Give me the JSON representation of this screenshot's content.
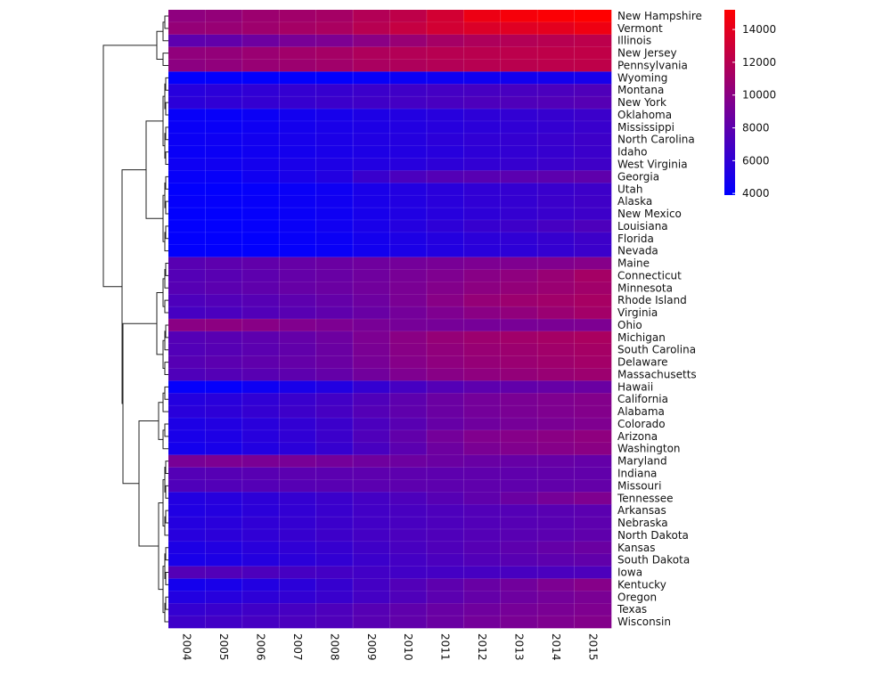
{
  "chart_data": {
    "type": "heatmap",
    "columns": [
      "2004",
      "2005",
      "2006",
      "2007",
      "2008",
      "2009",
      "2010",
      "2011",
      "2012",
      "2013",
      "2014",
      "2015"
    ],
    "rows": [
      "New Hampshire",
      "Vermont",
      "Illinois",
      "New Jersey",
      "Pennsylvania",
      "Wyoming",
      "Montana",
      "New York",
      "Oklahoma",
      "Mississippi",
      "North Carolina",
      "Idaho",
      "West Virginia",
      "Georgia",
      "Utah",
      "Alaska",
      "New Mexico",
      "Louisiana",
      "Florida",
      "Nevada",
      "Maine",
      "Connecticut",
      "Minnesota",
      "Rhode Island",
      "Virginia",
      "Ohio",
      "Michigan",
      "South Carolina",
      "Delaware",
      "Massachusetts",
      "Hawaii",
      "California",
      "Alabama",
      "Colorado",
      "Arizona",
      "Washington",
      "Maryland",
      "Indiana",
      "Missouri",
      "Tennessee",
      "Arkansas",
      "Nebraska",
      "North Dakota",
      "Kansas",
      "South Dakota",
      "Iowa",
      "Kentucky",
      "Oregon",
      "Texas",
      "Wisconsin"
    ],
    "values": [
      [
        10200,
        10400,
        10800,
        11000,
        11200,
        11800,
        12300,
        13200,
        14400,
        14800,
        15000,
        15200
      ],
      [
        10500,
        10600,
        10900,
        11200,
        11400,
        12000,
        12600,
        13200,
        13600,
        13800,
        14000,
        14500
      ],
      [
        8000,
        8200,
        8700,
        9200,
        9400,
        10000,
        10600,
        11200,
        11600,
        11800,
        12000,
        12200
      ],
      [
        10300,
        10400,
        10700,
        11000,
        11200,
        11600,
        11800,
        12000,
        12100,
        12200,
        12300,
        12400
      ],
      [
        10100,
        10300,
        10600,
        10800,
        11000,
        11400,
        11600,
        11800,
        12000,
        12100,
        12200,
        12300
      ],
      [
        4000,
        4000,
        4000,
        4000,
        4000,
        4200,
        4400,
        4500,
        4600,
        4700,
        4800,
        4900
      ],
      [
        5600,
        5800,
        6000,
        6200,
        6300,
        6500,
        6700,
        6900,
        7000,
        7100,
        7200,
        7400
      ],
      [
        5800,
        6000,
        6200,
        6300,
        6500,
        6700,
        6900,
        7100,
        7300,
        7400,
        7500,
        7700
      ],
      [
        4200,
        4200,
        4400,
        4700,
        4900,
        5200,
        5400,
        5600,
        5900,
        6100,
        6300,
        6500
      ],
      [
        4300,
        4300,
        4500,
        4800,
        5000,
        5200,
        5400,
        5600,
        5800,
        6000,
        6200,
        6400
      ],
      [
        4400,
        4500,
        4700,
        4900,
        5100,
        5300,
        5500,
        5800,
        6000,
        6200,
        6400,
        6600
      ],
      [
        4300,
        4400,
        4600,
        4800,
        5000,
        5200,
        5400,
        5600,
        5900,
        6100,
        6300,
        6500
      ],
      [
        4500,
        4600,
        4800,
        5000,
        5200,
        5400,
        5600,
        5900,
        6100,
        6300,
        6500,
        6700
      ],
      [
        4200,
        4200,
        4600,
        5000,
        5400,
        6400,
        7200,
        7600,
        7800,
        7900,
        8000,
        8100
      ],
      [
        4000,
        4000,
        4100,
        4300,
        4500,
        5000,
        5400,
        5700,
        6000,
        6200,
        6400,
        6600
      ],
      [
        4100,
        4100,
        4200,
        4400,
        4600,
        5000,
        5400,
        5700,
        6000,
        6200,
        6500,
        6700
      ],
      [
        4000,
        4000,
        4100,
        4300,
        4500,
        4900,
        5300,
        5600,
        5900,
        6200,
        6400,
        6600
      ],
      [
        4000,
        4000,
        4100,
        4300,
        4600,
        5000,
        5500,
        5900,
        6300,
        6600,
        7000,
        7300
      ],
      [
        4000,
        4000,
        4000,
        4200,
        4400,
        4800,
        5200,
        5500,
        5800,
        6000,
        6300,
        6600
      ],
      [
        4000,
        4000,
        4000,
        4100,
        4300,
        4700,
        5100,
        5400,
        5700,
        5900,
        6200,
        6500
      ],
      [
        7800,
        8000,
        8200,
        8400,
        8600,
        8800,
        9000,
        9200,
        9400,
        9500,
        9600,
        9800
      ],
      [
        7600,
        7800,
        8000,
        8300,
        8500,
        8800,
        9200,
        9500,
        9900,
        10200,
        10600,
        11200
      ],
      [
        7700,
        7900,
        8100,
        8400,
        8600,
        8900,
        9300,
        9700,
        10100,
        10400,
        10700,
        11000
      ],
      [
        7300,
        7500,
        7700,
        8000,
        8300,
        8700,
        9300,
        9900,
        10500,
        10800,
        11000,
        11300
      ],
      [
        7000,
        7200,
        7500,
        7800,
        8100,
        8500,
        9000,
        9500,
        10000,
        10300,
        10700,
        11100
      ],
      [
        10000,
        10100,
        9900,
        9600,
        9400,
        9200,
        9100,
        9100,
        9100,
        9200,
        9300,
        9400
      ],
      [
        7600,
        7800,
        8000,
        8300,
        8700,
        9400,
        10000,
        10500,
        10800,
        11000,
        11200,
        11400
      ],
      [
        7500,
        7700,
        7900,
        8200,
        8600,
        9300,
        9900,
        10300,
        10600,
        10800,
        11000,
        11200
      ],
      [
        7700,
        7900,
        8100,
        8300,
        8600,
        9200,
        9800,
        10200,
        10500,
        10700,
        10900,
        11100
      ],
      [
        7400,
        7600,
        7800,
        8000,
        8300,
        8900,
        9500,
        9900,
        10200,
        10400,
        10600,
        10800
      ],
      [
        4100,
        4100,
        4500,
        5000,
        5400,
        6200,
        7000,
        7600,
        8000,
        8200,
        8400,
        8600
      ],
      [
        5500,
        5700,
        6000,
        6400,
        6800,
        7400,
        8000,
        8600,
        9000,
        9300,
        9500,
        9700
      ],
      [
        5700,
        5900,
        6200,
        6600,
        7000,
        7600,
        8100,
        8600,
        9000,
        9300,
        9500,
        9700
      ],
      [
        5200,
        5400,
        5700,
        6100,
        6500,
        7200,
        7800,
        8400,
        8800,
        9100,
        9300,
        9500
      ],
      [
        5000,
        5200,
        5600,
        6000,
        6500,
        7400,
        8200,
        9000,
        9600,
        9800,
        10000,
        10200
      ],
      [
        4800,
        5000,
        5400,
        5800,
        6300,
        7100,
        7900,
        8700,
        9300,
        9600,
        9800,
        10000
      ],
      [
        9200,
        9400,
        9300,
        9200,
        9000,
        8800,
        8700,
        8600,
        8500,
        8400,
        8400,
        8300
      ],
      [
        7600,
        7700,
        7800,
        7900,
        7900,
        8000,
        8000,
        8000,
        8100,
        8100,
        8200,
        8200
      ],
      [
        7400,
        7500,
        7600,
        7700,
        7800,
        7900,
        8000,
        8000,
        8100,
        8100,
        8200,
        8300
      ],
      [
        5400,
        5600,
        5900,
        6200,
        6500,
        6900,
        7300,
        7700,
        8100,
        8600,
        9100,
        9500
      ],
      [
        5300,
        5500,
        5800,
        6100,
        6400,
        6800,
        7100,
        7300,
        7500,
        7600,
        7800,
        7900
      ],
      [
        5500,
        5700,
        6000,
        6200,
        6500,
        6800,
        7100,
        7300,
        7500,
        7700,
        7800,
        8000
      ],
      [
        5600,
        5800,
        6000,
        6300,
        6600,
        6900,
        7200,
        7400,
        7600,
        7800,
        7900,
        8100
      ],
      [
        5200,
        5400,
        5700,
        6000,
        6300,
        6700,
        7100,
        7400,
        7700,
        8000,
        8300,
        8600
      ],
      [
        5000,
        5200,
        5500,
        5800,
        6100,
        6500,
        6900,
        7200,
        7500,
        7800,
        8000,
        8200
      ],
      [
        7600,
        7500,
        7300,
        7000,
        6900,
        6800,
        6800,
        6900,
        7000,
        7100,
        7200,
        7300
      ],
      [
        4800,
        5000,
        5400,
        5800,
        6300,
        6900,
        7500,
        8000,
        8500,
        8900,
        9400,
        9800
      ],
      [
        5400,
        5600,
        5900,
        6100,
        6400,
        6900,
        7400,
        7900,
        8300,
        8700,
        9000,
        9300
      ],
      [
        6200,
        6400,
        6700,
        7000,
        7300,
        7700,
        8100,
        8500,
        8800,
        9100,
        9300,
        9500
      ],
      [
        6600,
        6800,
        7000,
        7200,
        7400,
        7800,
        8200,
        8600,
        9000,
        9300,
        9500,
        9700
      ]
    ],
    "colorbar": {
      "ticks": [
        4000,
        6000,
        8000,
        10000,
        12000,
        14000
      ],
      "range": [
        3900,
        15200
      ]
    },
    "colors": {
      "low": "#0000ff",
      "mid": "#80008f",
      "high": "#ff0000"
    },
    "row_dendrogram": "left",
    "xlabel": "",
    "ylabel": "",
    "title": ""
  }
}
